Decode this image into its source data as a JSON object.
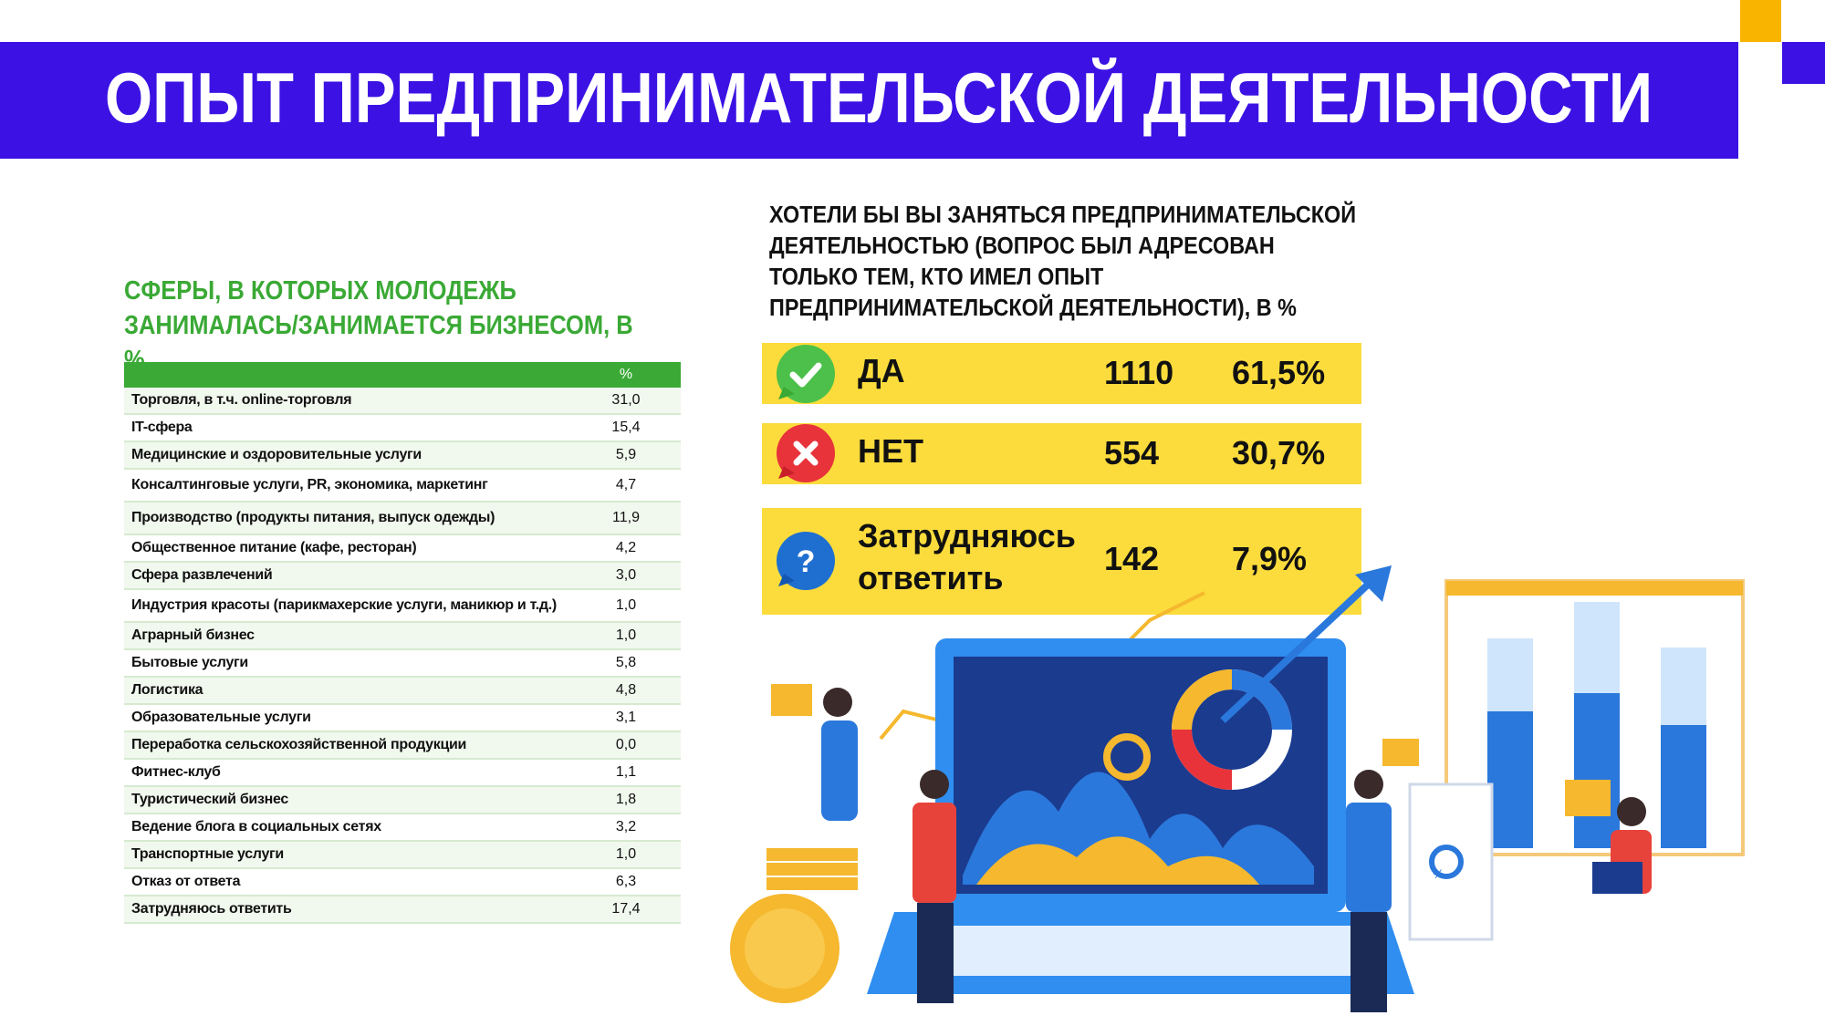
{
  "header": {
    "title": "ОПЫТ ПРЕДПРИНИМАТЕЛЬСКОЙ ДЕЯТЕЛЬНОСТИ"
  },
  "left": {
    "heading": "СФЕРЫ, В КОТОРЫХ МОЛОДЕЖЬ ЗАНИМАЛАСЬ/ЗАНИМАЕТСЯ БИЗНЕСОМ, В %",
    "table_header": "%",
    "rows": [
      {
        "label": "Торговля, в т.ч. online-торговля",
        "value": "31,0"
      },
      {
        "label": "IT-сфера",
        "value": "15,4"
      },
      {
        "label": "Медицинские и оздоровительные услуги",
        "value": "5,9"
      },
      {
        "label": "Консалтинговые услуги, PR, экономика, маркетинг",
        "value": "4,7"
      },
      {
        "label": "Производство (продукты питания, выпуск одежды)",
        "value": "11,9"
      },
      {
        "label": "Общественное питание (кафе, ресторан)",
        "value": "4,2"
      },
      {
        "label": "Сфера развлечений",
        "value": "3,0"
      },
      {
        "label": "Индустрия красоты (парикмахерские услуги, маникюр и т.д.)",
        "value": "1,0"
      },
      {
        "label": "Аграрный бизнес",
        "value": "1,0"
      },
      {
        "label": "Бытовые услуги",
        "value": "5,8"
      },
      {
        "label": "Логистика",
        "value": "4,8"
      },
      {
        "label": "Образовательные услуги",
        "value": "3,1"
      },
      {
        "label": "Переработка сельскохозяйственной продукции",
        "value": "0,0"
      },
      {
        "label": "Фитнес-клуб",
        "value": "1,1"
      },
      {
        "label": "Туристический бизнес",
        "value": "1,8"
      },
      {
        "label": "Ведение блога в социальных сетях",
        "value": "3,2"
      },
      {
        "label": "Транспортные услуги",
        "value": "1,0"
      },
      {
        "label": "Отказ от ответа",
        "value": "6,3"
      },
      {
        "label": "Затрудняюсь ответить",
        "value": "17,4"
      }
    ]
  },
  "right": {
    "question": "ХОТЕЛИ БЫ ВЫ ЗАНЯТЬСЯ ПРЕДПРИНИМАТЕЛЬСКОЙ ДЕЯТЕЛЬНОСТЬЮ (ВОПРОС БЫЛ АДРЕСОВАН ТОЛЬКО ТЕМ, КТО ИМЕЛ ОПЫТ ПРЕДПРИНИМАТЕЛЬСКОЙ ДЕЯТЕЛЬНОСТИ), В %",
    "answers": [
      {
        "label": "ДА",
        "count": "1110",
        "percent": "61,5%",
        "icon": "check-icon"
      },
      {
        "label": "НЕТ",
        "count": "554",
        "percent": "30,7%",
        "icon": "cross-icon"
      },
      {
        "label_line1": "Затрудняюсь",
        "label_line2": "ответить",
        "count": "142",
        "percent": "7,9%",
        "icon": "question-icon"
      }
    ],
    "illustration_symbol": "%"
  },
  "colors": {
    "brand_blue": "#3b12e3",
    "accent_yellow": "#f9b400",
    "answer_bg": "#fcdc3c",
    "green": "#3aa935",
    "yes_green": "#4cc04a",
    "no_red": "#e8333b",
    "question_blue": "#1f6fd1"
  }
}
